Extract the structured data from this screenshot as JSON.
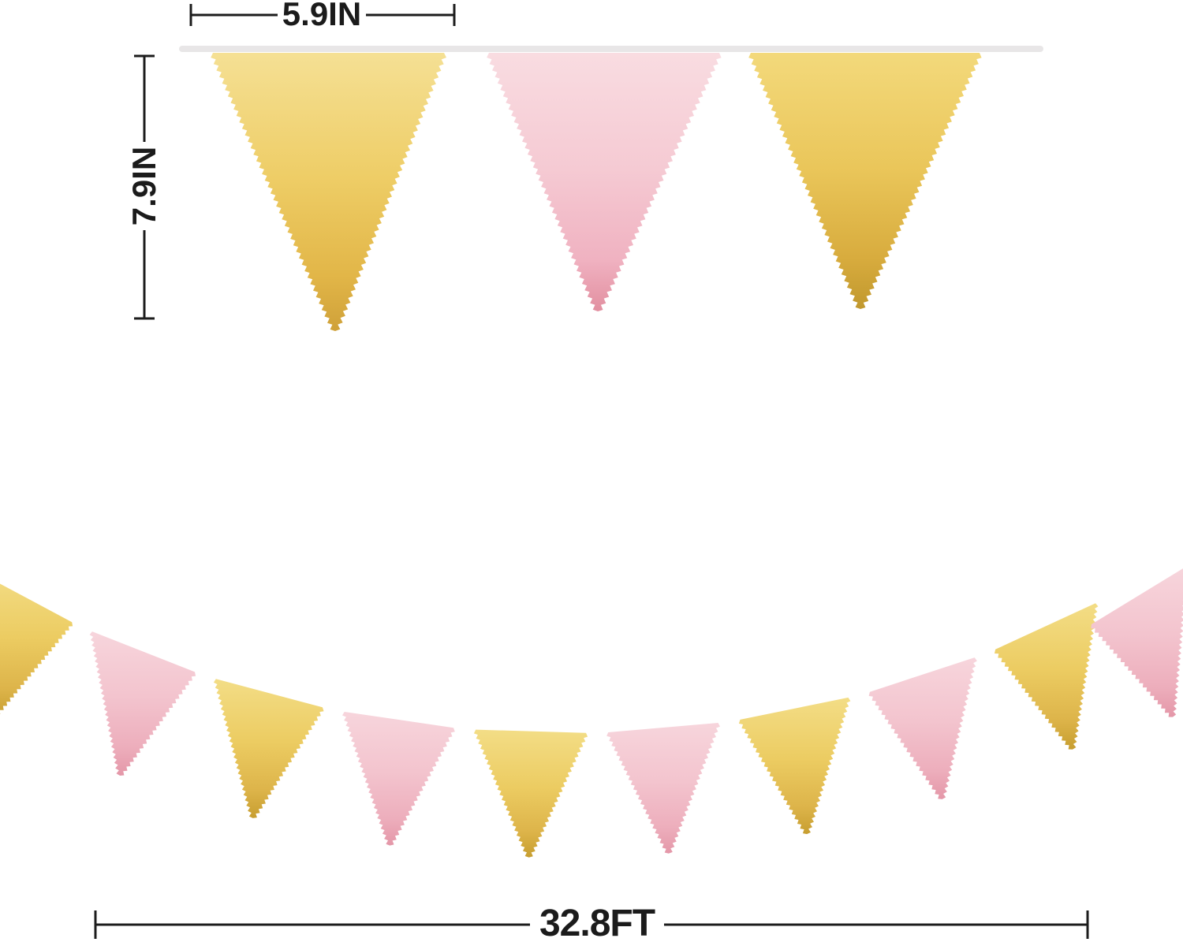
{
  "annotations": {
    "flag_width_label": "5.9IN",
    "flag_height_label": "7.9IN",
    "banner_length_label": "32.8FT"
  },
  "colors": {
    "dimension_line": "#1c1c1c",
    "label_text": "#1b1b1b",
    "ribbon": "#e8e6e7",
    "gold_top": [
      "#F5E094",
      "#EECD66",
      "#E2B648",
      "#CFA139"
    ],
    "pink_top": [
      "#F9DCE1",
      "#F5CAD3",
      "#F0B2C1",
      "#E28FA0"
    ],
    "gold_top2": [
      "#F3D97B",
      "#EAC65A",
      "#D8AC3E",
      "#C1982E"
    ],
    "gold_bottom": [
      "#F3DD86",
      "#ECCC62",
      "#DDB44A",
      "#C79E30"
    ],
    "pink_bottom": [
      "#F7D5DC",
      "#F3C4CE",
      "#EDAEBC",
      "#E497A8"
    ]
  },
  "top_banner": {
    "pennant_colors": [
      "gold_top",
      "pink_top",
      "gold_top2"
    ]
  },
  "bottom_banner": {
    "pennant_colors": [
      "gold_bottom",
      "pink_bottom",
      "gold_bottom",
      "pink_bottom",
      "gold_bottom",
      "pink_bottom",
      "gold_bottom",
      "pink_bottom",
      "gold_bottom",
      "pink_bottom"
    ]
  }
}
